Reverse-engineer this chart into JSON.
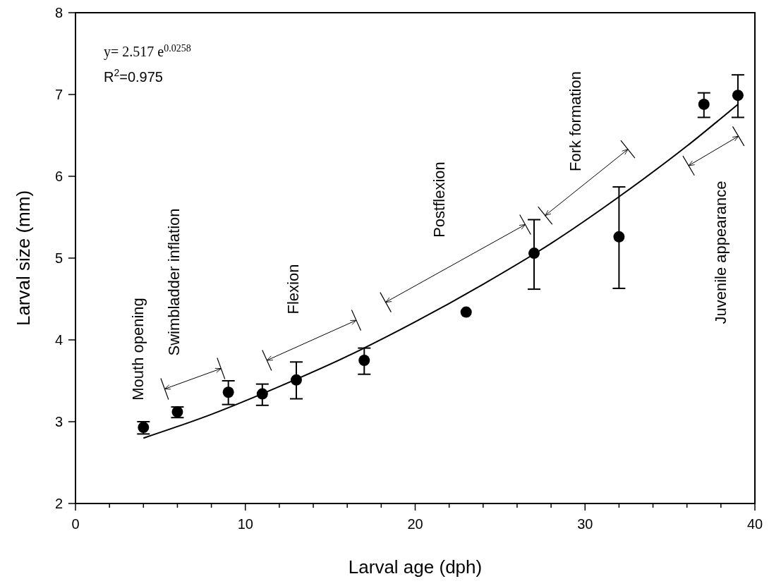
{
  "chart_data": {
    "type": "scatter",
    "xlabel": "Larval age (dph)",
    "ylabel": "Larval size (mm)",
    "xlim": [
      0,
      40
    ],
    "ylim": [
      2,
      8
    ],
    "xticks": [
      0,
      {
        "value": 2,
        "label": null
      },
      {
        "value": 4,
        "label": null
      },
      {
        "value": 6,
        "label": null
      },
      {
        "value": 8,
        "label": null
      },
      10,
      {
        "value": 12,
        "label": null
      },
      {
        "value": 14,
        "label": null
      },
      {
        "value": 16,
        "label": null
      },
      {
        "value": 18,
        "label": null
      },
      20,
      {
        "value": 22,
        "label": null
      },
      {
        "value": 24,
        "label": null
      },
      {
        "value": 26,
        "label": null
      },
      {
        "value": 28,
        "label": null
      },
      30,
      {
        "value": 32,
        "label": null
      },
      {
        "value": 34,
        "label": null
      },
      {
        "value": 36,
        "label": null
      },
      {
        "value": 38,
        "label": null
      },
      40
    ],
    "yticks": [
      2,
      3,
      4,
      5,
      6,
      7,
      8
    ],
    "grid": false,
    "marker": "circle",
    "series": [
      {
        "color": "#000000",
        "x": [
          4,
          6,
          9,
          11,
          13,
          17,
          23,
          27,
          32,
          37,
          39
        ],
        "values": [
          2.93,
          3.12,
          3.36,
          3.34,
          3.51,
          3.75,
          4.34,
          5.06,
          5.26,
          6.88,
          6.99
        ],
        "errors": [
          [
            2.85,
            3.0
          ],
          [
            3.05,
            3.18
          ],
          [
            3.21,
            3.5
          ],
          [
            3.2,
            3.46
          ],
          [
            3.28,
            3.73
          ],
          [
            3.58,
            3.9
          ],
          null,
          [
            4.62,
            5.47
          ],
          [
            4.63,
            5.87
          ],
          [
            6.72,
            7.02
          ],
          [
            6.72,
            7.24
          ]
        ]
      },
      {
        "type": "line",
        "color": "#000000",
        "line_style": "solid",
        "marker": "none",
        "x": [
          4,
          8,
          12,
          16,
          20,
          24,
          28,
          32,
          36,
          39
        ],
        "values": [
          2.8,
          3.09,
          3.43,
          3.8,
          4.22,
          4.68,
          5.18,
          5.75,
          6.37,
          6.88
        ]
      }
    ],
    "annotations": [
      "y= 2.517 e$^{0.0258}$",
      "R$^{2}$=0.975",
      "Mouth opening",
      "Swimbladder inflation",
      "Flexion",
      "Postflexion",
      "Fork formation",
      "Juvenile appearance"
    ]
  }
}
